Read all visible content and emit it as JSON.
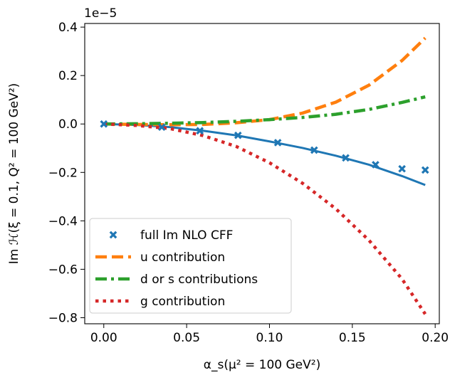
{
  "chart_data": {
    "type": "line",
    "title": "",
    "xlabel": "α_s(μ² = 100 GeV²)",
    "ylabel": "Im ℋ(ξ = 0.1, Q² = 100 GeV²)",
    "offset_text": "1e−5",
    "xlim": [
      -0.0115,
      0.2025
    ],
    "ylim": [
      -0.825,
      0.415
    ],
    "x_ticks": [
      0.0,
      0.05,
      0.1,
      0.15,
      0.2
    ],
    "x_tick_labels": [
      "0.00",
      "0.05",
      "0.10",
      "0.15",
      "0.20"
    ],
    "y_ticks": [
      0.4,
      0.2,
      0.0,
      -0.2,
      -0.4,
      -0.6,
      -0.8
    ],
    "y_tick_labels": [
      "0.4",
      "0.2",
      "0.0",
      "−0.2",
      "−0.4",
      "−0.6",
      "−0.8"
    ],
    "grid": false,
    "legend_position": "lower-left",
    "series": [
      {
        "name": "full Im NLO CFF",
        "kind": "markers",
        "color": "#1f77b4",
        "x": [
          0.0,
          0.035,
          0.058,
          0.081,
          0.105,
          0.127,
          0.146,
          0.164,
          0.18,
          0.194
        ],
        "y": [
          0.0,
          -0.013,
          -0.028,
          -0.047,
          -0.077,
          -0.108,
          -0.14,
          -0.168,
          -0.185,
          -0.19
        ]
      },
      {
        "name": "",
        "kind": "line",
        "color": "#1f77b4",
        "x": [
          0.0,
          0.02,
          0.04,
          0.06,
          0.08,
          0.1,
          0.12,
          0.14,
          0.16,
          0.18,
          0.194
        ],
        "y": [
          0.0,
          -0.004,
          -0.013,
          -0.028,
          -0.047,
          -0.072,
          -0.099,
          -0.131,
          -0.168,
          -0.215,
          -0.252
        ]
      },
      {
        "name": "u contribution",
        "kind": "dashed",
        "color": "#ff7f0e",
        "x": [
          0.0,
          0.02,
          0.04,
          0.06,
          0.08,
          0.1,
          0.12,
          0.14,
          0.16,
          0.18,
          0.194
        ],
        "y": [
          0.0,
          -0.002,
          -0.003,
          -0.002,
          0.005,
          0.018,
          0.045,
          0.09,
          0.16,
          0.262,
          0.355
        ]
      },
      {
        "name": "d or s contributions",
        "kind": "dashdot",
        "color": "#2ca02c",
        "x": [
          0.0,
          0.02,
          0.04,
          0.06,
          0.08,
          0.1,
          0.12,
          0.14,
          0.16,
          0.18,
          0.194
        ],
        "y": [
          0.0,
          0.001,
          0.003,
          0.006,
          0.011,
          0.018,
          0.027,
          0.04,
          0.06,
          0.089,
          0.112
        ]
      },
      {
        "name": "g contribution",
        "kind": "dotted",
        "color": "#d62728",
        "x": [
          0.0,
          0.02,
          0.04,
          0.06,
          0.08,
          0.1,
          0.12,
          0.14,
          0.16,
          0.18,
          0.194
        ],
        "y": [
          0.0,
          -0.006,
          -0.019,
          -0.048,
          -0.093,
          -0.16,
          -0.245,
          -0.35,
          -0.48,
          -0.64,
          -0.785
        ]
      }
    ]
  }
}
